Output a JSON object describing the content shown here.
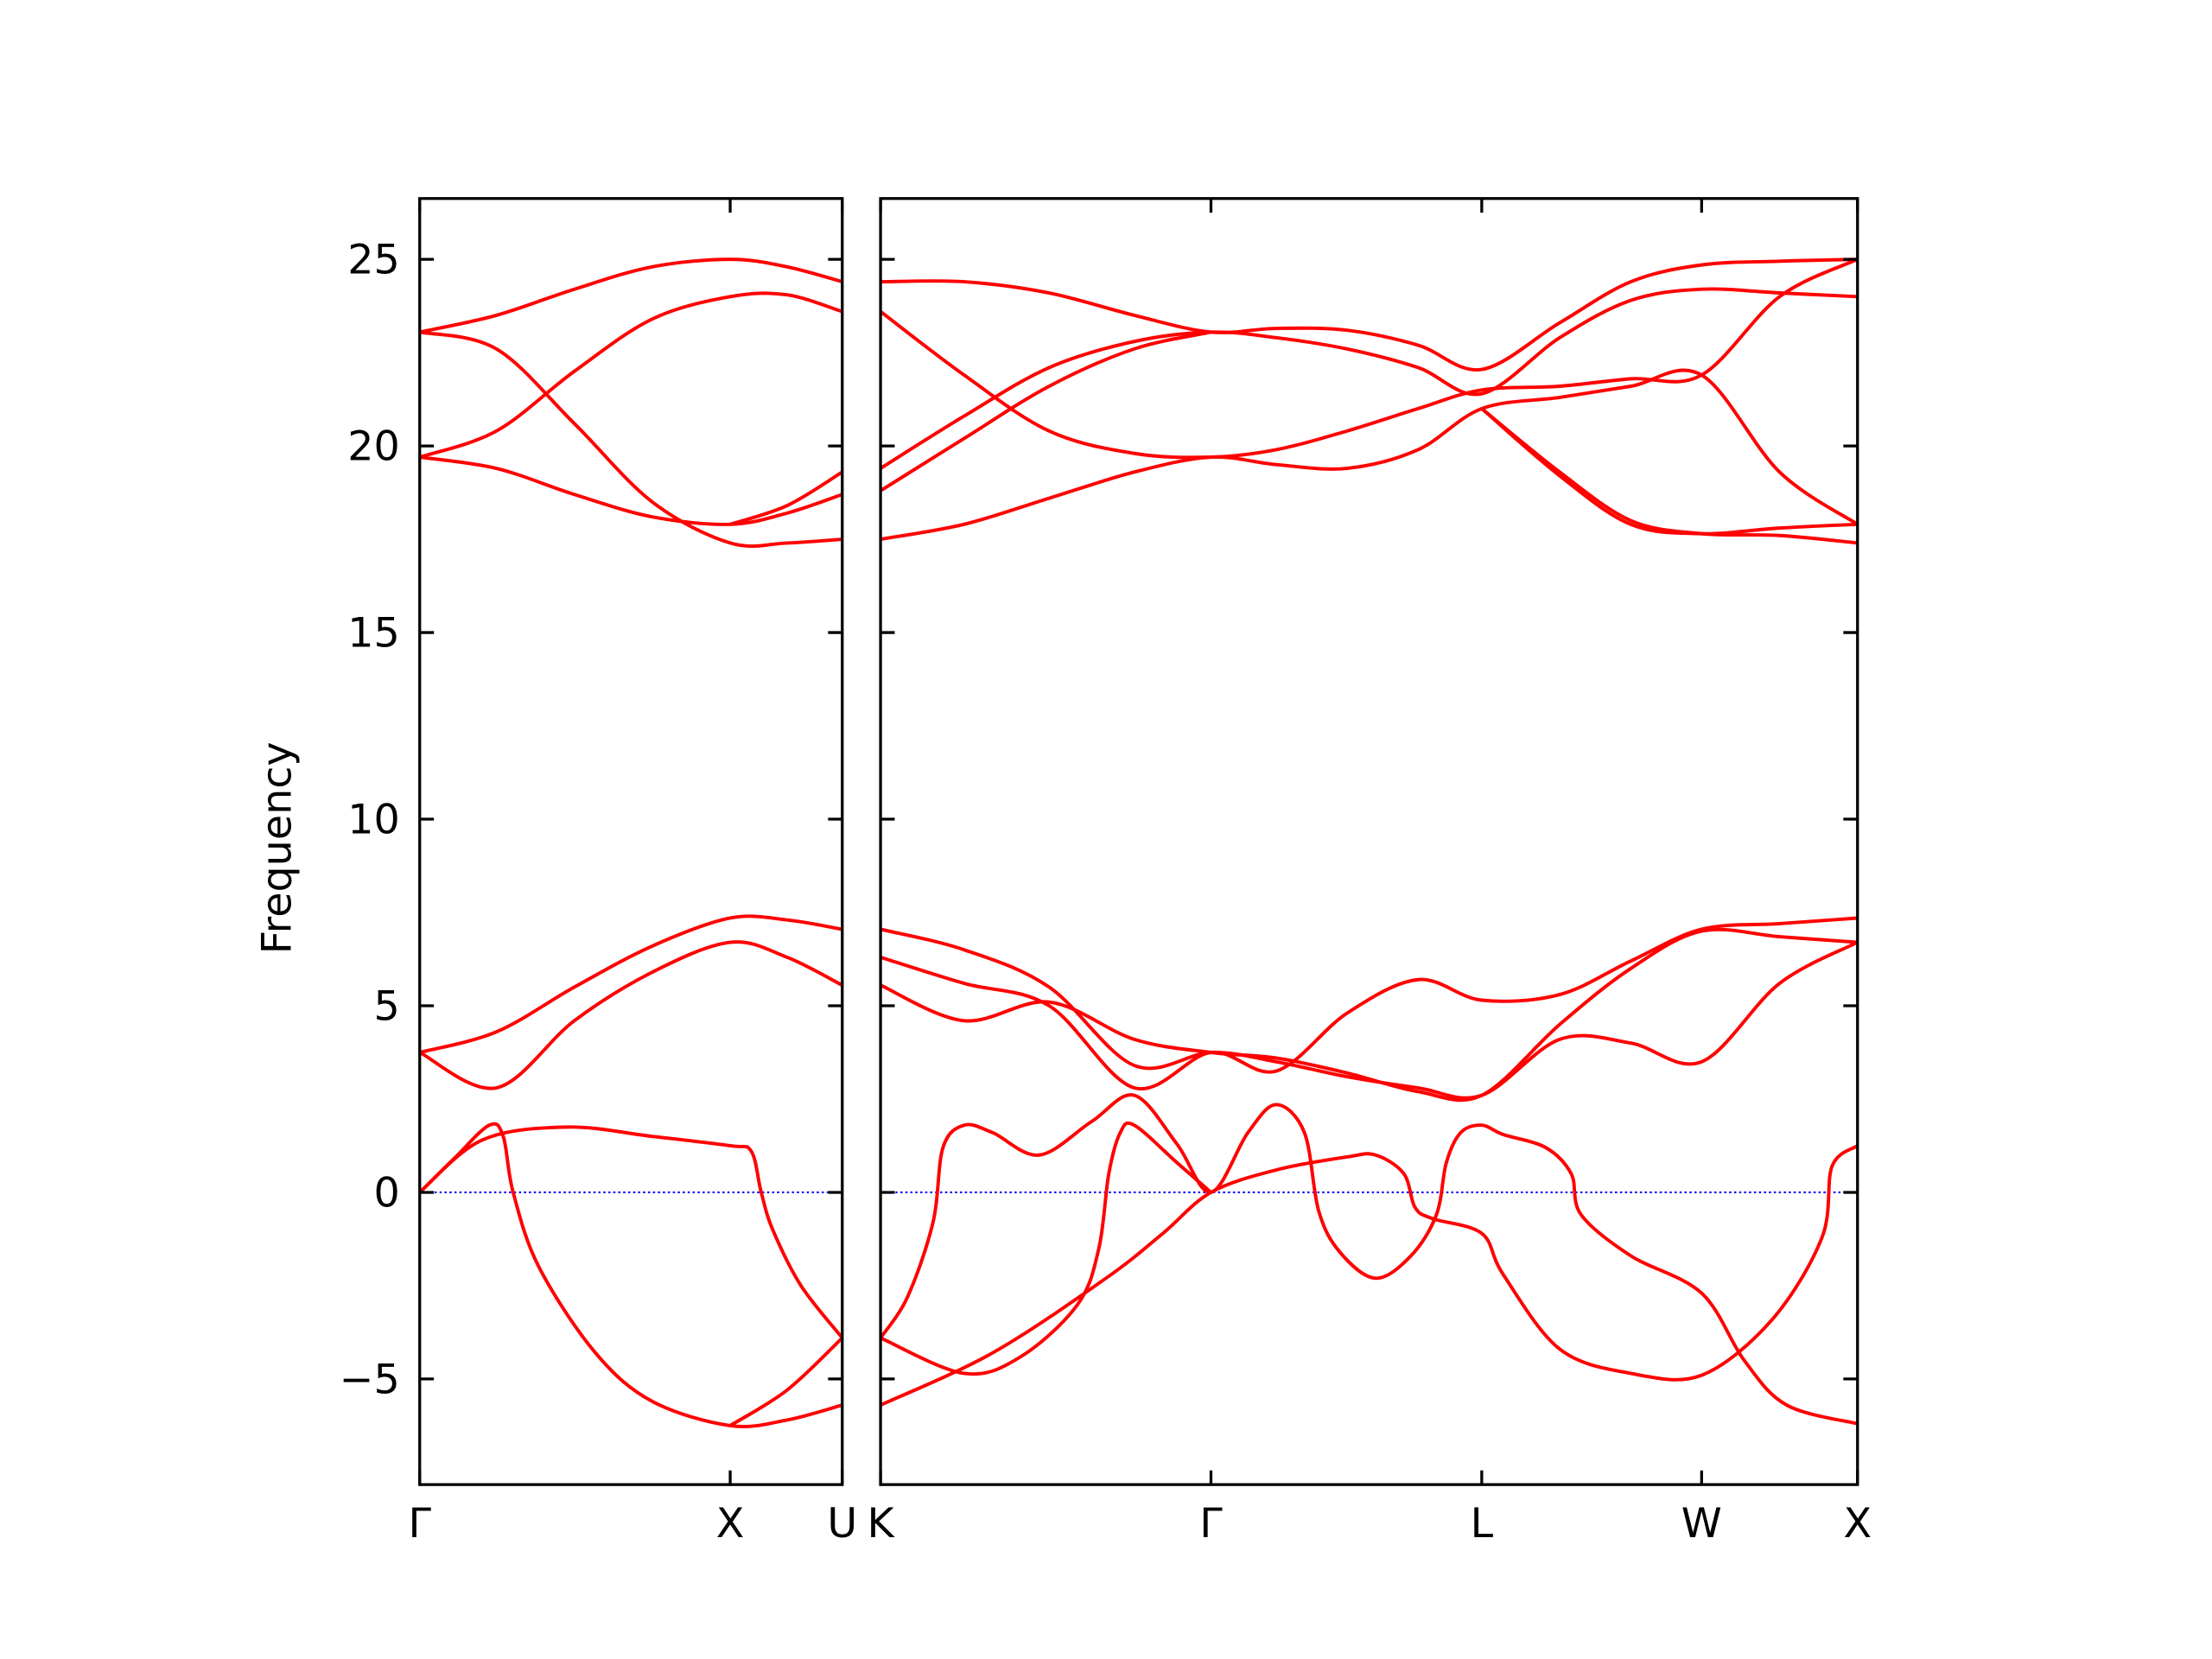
{
  "chart_data": [
    {
      "type": "line",
      "ylabel": "Frequency",
      "color": "#ff0000",
      "hline": 0,
      "hline_color": "#0000ff",
      "xlim": [
        0,
        1.361
      ],
      "ylim": [
        -7.83,
        26.63
      ],
      "xticks": [
        {
          "value": 0,
          "label": "Γ"
        },
        {
          "value": 1.0,
          "label": "X"
        },
        {
          "value": 1.361,
          "label": "U"
        }
      ],
      "yticks": [
        {
          "value": -5,
          "label": "−5"
        },
        0,
        5,
        10,
        15,
        20,
        25
      ],
      "series": [
        {
          "x": [
            0,
            0.247,
            0.498,
            0.749,
            1.0,
            1.183,
            1.361
          ],
          "values": [
            23.05,
            23.5,
            24.2,
            24.8,
            25.0,
            24.8,
            24.4
          ]
        },
        {
          "x": [
            0,
            0.247,
            0.498,
            0.749,
            1.0,
            1.183,
            1.361
          ],
          "values": [
            23.05,
            22.6,
            20.6,
            18.5,
            17.4,
            17.4,
            17.5
          ]
        },
        {
          "x": [
            0,
            0.247,
            0.498,
            0.749,
            1.0,
            1.183,
            1.361
          ],
          "values": [
            19.7,
            20.4,
            22.0,
            23.4,
            24.0,
            24.05,
            23.6
          ]
        },
        {
          "x": [
            0,
            0.247,
            0.498,
            0.749,
            1.0,
            1.183,
            1.361
          ],
          "values": [
            19.7,
            19.4,
            18.7,
            18.1,
            17.9,
            18.2,
            18.7
          ]
        },
        {
          "x": [
            1.0,
            1.183,
            1.361
          ],
          "values": [
            17.9,
            18.4,
            19.3
          ]
        },
        {
          "x": [
            0,
            0.247,
            0.498,
            0.749,
            1.0,
            1.183,
            1.361
          ],
          "values": [
            3.75,
            4.3,
            5.5,
            6.6,
            7.35,
            7.3,
            7.05
          ]
        },
        {
          "x": [
            0,
            0.247,
            0.498,
            0.749,
            1.0,
            1.183,
            1.361
          ],
          "values": [
            3.75,
            2.8,
            4.6,
            5.9,
            6.7,
            6.3,
            5.55
          ]
        },
        {
          "x": [
            0,
            0.11,
            0.224,
            0.269,
            0.301,
            0.384,
            0.566,
            0.749,
            1.0,
            1.183,
            1.361
          ],
          "values": [
            0,
            0.9,
            1.8,
            1.5,
            0,
            -2,
            -4.3,
            -5.6,
            -6.25,
            -6.1,
            -5.7
          ]
        },
        {
          "x": [
            0,
            0.201,
            0.475,
            0.749,
            1.0,
            1.068,
            1.1,
            1.137,
            1.228,
            1.361
          ],
          "values": [
            0,
            1.4,
            1.75,
            1.5,
            1.25,
            1.1,
            0,
            -1,
            -2.5,
            -3.9
          ]
        },
        {
          "x": [
            1.0,
            1.183,
            1.361
          ],
          "values": [
            -6.25,
            -5.3,
            -3.9
          ]
        }
      ]
    },
    {
      "type": "line",
      "color": "#ff0000",
      "hline": 0,
      "hline_color": "#0000ff",
      "xlim": [
        0,
        3.146
      ],
      "ylim": [
        -7.83,
        26.63
      ],
      "xticks": [
        {
          "value": 0,
          "label": "K"
        },
        {
          "value": 1.064,
          "label": "Γ"
        },
        {
          "value": 1.936,
          "label": "L"
        },
        {
          "value": 2.644,
          "label": "W"
        },
        {
          "value": 3.146,
          "label": "X"
        }
      ],
      "series": [
        {
          "x": [
            0,
            0.269,
            0.543,
            0.817,
            1.064,
            1.274,
            1.502,
            1.731,
            1.936,
            2.187,
            2.416,
            2.644,
            2.895,
            3.146
          ],
          "values": [
            24.4,
            24.4,
            24.1,
            23.5,
            23.05,
            23.15,
            23.1,
            22.7,
            22.05,
            23.3,
            24.4,
            24.85,
            24.95,
            25.0
          ]
        },
        {
          "x": [
            0,
            0.269,
            0.543,
            0.817,
            1.064,
            1.274,
            1.502,
            1.731,
            1.936,
            2.187,
            2.416,
            2.644,
            2.895,
            3.146
          ],
          "values": [
            19.4,
            20.8,
            22.1,
            22.8,
            23.05,
            22.9,
            22.6,
            22.1,
            21.4,
            22.9,
            23.9,
            24.2,
            24.1,
            24.0
          ]
        },
        {
          "x": [
            0,
            0.269,
            0.543,
            0.817,
            1.064,
            1.274,
            1.502,
            1.731,
            1.936,
            2.187,
            2.416,
            2.644,
            2.895,
            3.146
          ],
          "values": [
            23.6,
            21.9,
            20.4,
            19.8,
            19.7,
            19.9,
            20.4,
            21.0,
            21.5,
            21.6,
            21.8,
            21.9,
            24.0,
            25.0
          ]
        },
        {
          "x": [
            0,
            0.269,
            0.543,
            0.817,
            1.064,
            1.274,
            1.502,
            1.731,
            1.936,
            2.187,
            2.416,
            2.644,
            2.895,
            3.146
          ],
          "values": [
            17.5,
            17.9,
            18.6,
            19.3,
            19.7,
            19.5,
            19.4,
            19.9,
            21.0,
            21.3,
            21.6,
            21.9,
            19.3,
            17.9
          ]
        },
        {
          "x": [
            0,
            0.269,
            0.543,
            0.817,
            1.064
          ],
          "values": [
            18.8,
            20.2,
            21.6,
            22.6,
            23.05
          ]
        },
        {
          "x": [
            1.936,
            2.187,
            2.416,
            2.644,
            2.895,
            3.146
          ],
          "values": [
            21.0,
            19.2,
            17.9,
            17.65,
            17.8,
            17.9
          ]
        },
        {
          "x": [
            1.936,
            2.187,
            2.416,
            2.644,
            2.895,
            3.146
          ],
          "values": [
            21.0,
            19.3,
            18.0,
            17.65,
            17.6,
            17.4
          ]
        },
        {
          "x": [
            0,
            0.269,
            0.543,
            0.817,
            1.064,
            1.274,
            1.502,
            1.731,
            1.936,
            2.187,
            2.416,
            2.644,
            2.895,
            3.146
          ],
          "values": [
            7.05,
            6.5,
            5.5,
            3.4,
            3.75,
            3.5,
            3.1,
            2.8,
            2.6,
            4.1,
            4.0,
            3.5,
            5.6,
            6.7
          ]
        },
        {
          "x": [
            0,
            0.269,
            0.543,
            0.817,
            1.064,
            1.274,
            1.502,
            1.731,
            1.936,
            2.187,
            2.416,
            2.644,
            2.895,
            3.146
          ],
          "values": [
            6.3,
            5.6,
            5.0,
            2.8,
            3.75,
            3.25,
            4.8,
            5.7,
            5.15,
            5.3,
            6.2,
            7.05,
            7.2,
            7.35
          ]
        },
        {
          "x": [
            0,
            0.269,
            0.543,
            0.817,
            1.064,
            1.274,
            1.502,
            1.731,
            1.936,
            2.187,
            2.416,
            2.644,
            2.895,
            3.146
          ],
          "values": [
            5.55,
            4.6,
            5.1,
            4.1,
            3.75,
            3.6,
            3.2,
            2.7,
            2.6,
            4.5,
            6.0,
            7.0,
            6.85,
            6.7
          ]
        },
        {
          "x": [
            0,
            0.087,
            0.169,
            0.201,
            0.269,
            0.361,
            0.511,
            0.68,
            0.817,
            0.954,
            1.064,
            1.183,
            1.274,
            1.365,
            1.411,
            1.479,
            1.594,
            1.708,
            1.79,
            1.822,
            1.868,
            1.936,
            2.005,
            2.142,
            2.224,
            2.256,
            2.416,
            2.644,
            2.781,
            2.918,
            3.146
          ],
          "values": [
            -3.9,
            -2.8,
            -0.8,
            1.2,
            1.8,
            1.6,
            1.0,
            1.9,
            2.6,
            1.3,
            0,
            1.6,
            2.35,
            1.6,
            -0.5,
            -1.6,
            -2.3,
            -1.7,
            -0.6,
            0.8,
            1.6,
            1.8,
            1.55,
            1.2,
            0.5,
            -0.6,
            -1.7,
            -2.7,
            -4.5,
            -5.7,
            -6.2
          ]
        },
        {
          "x": [
            0,
            0.361,
            0.726,
            0.909,
            1.064,
            1.274,
            1.502,
            1.594,
            1.685,
            1.721,
            1.776,
            1.936,
            2.005,
            2.187,
            2.416,
            2.644,
            2.872,
            3.032,
            3.064,
            3.146
          ],
          "values": [
            -5.7,
            -4.3,
            -2.3,
            -1.1,
            0,
            0.6,
            0.95,
            1.0,
            0.5,
            -0.4,
            -0.7,
            -1.1,
            -2.2,
            -4.2,
            -4.85,
            -4.9,
            -3.4,
            -1.2,
            0.7,
            1.25
          ]
        },
        {
          "x": [
            0,
            0.269,
            0.452,
            0.635,
            0.703,
            0.735,
            0.772,
            0.817,
            0.954,
            1.064
          ],
          "values": [
            -3.9,
            -4.85,
            -4.4,
            -3.0,
            -1.5,
            0.5,
            1.6,
            1.8,
            0.8,
            0
          ]
        }
      ]
    }
  ]
}
